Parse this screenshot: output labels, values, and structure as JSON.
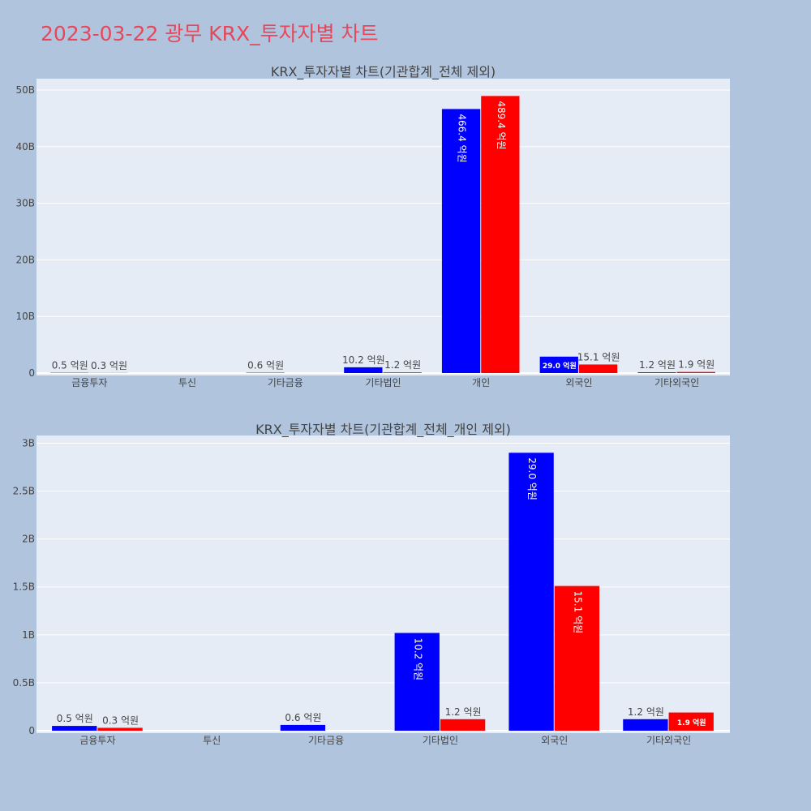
{
  "title": "2023-03-22 광무 KRX_투자자별 차트",
  "colors": {
    "series_a": "#0000ff",
    "series_b": "#ff0000",
    "title": "#e8465a",
    "plot_bg": "#e5ecf6",
    "page_bg": "#b0c4de"
  },
  "chart_data": [
    {
      "type": "bar",
      "title": "KRX_투자자별 차트(기관합계_전체 제외)",
      "categories": [
        "금융투자",
        "투신",
        "기타금융",
        "기타법인",
        "개인",
        "외국인",
        "기타외국인"
      ],
      "series": [
        {
          "values": [
            50000000,
            0,
            60000000,
            1020000000,
            46640000000,
            2900000000,
            120000000
          ],
          "labels": [
            "0.5 억원",
            "",
            "0.6 억원",
            "10.2 억원",
            "466.4 억원",
            "29.0 억원",
            "1.2 억원"
          ]
        },
        {
          "values": [
            30000000,
            0,
            0,
            120000000,
            48940000000,
            1510000000,
            190000000
          ],
          "labels": [
            "0.3 억원",
            "",
            "",
            "1.2 억원",
            "489.4 억원",
            "15.1 억원",
            "1.9 억원"
          ]
        }
      ],
      "ylim": [
        0,
        52000000000
      ],
      "yticks": [
        0,
        10000000000,
        20000000000,
        30000000000,
        40000000000,
        50000000000
      ],
      "ytick_labels": [
        "0",
        "10B",
        "20B",
        "30B",
        "40B",
        "50B"
      ]
    },
    {
      "type": "bar",
      "title": "KRX_투자자별 차트(기관합계_전체_개인 제외)",
      "categories": [
        "금융투자",
        "투신",
        "기타금융",
        "기타법인",
        "외국인",
        "기타외국인"
      ],
      "series": [
        {
          "values": [
            50000000,
            0,
            60000000,
            1020000000,
            2900000000,
            120000000
          ],
          "labels": [
            "0.5 억원",
            "",
            "0.6 억원",
            "10.2 억원",
            "29.0 억원",
            "1.2 억원"
          ]
        },
        {
          "values": [
            30000000,
            0,
            0,
            120000000,
            1510000000,
            190000000
          ],
          "labels": [
            "0.3 억원",
            "",
            "",
            "1.2 억원",
            "15.1 억원",
            "1.9 억원"
          ]
        }
      ],
      "ylim": [
        0,
        3080000000
      ],
      "yticks": [
        0,
        500000000,
        1000000000,
        1500000000,
        2000000000,
        2500000000,
        3000000000
      ],
      "ytick_labels": [
        "0",
        "0.5B",
        "1B",
        "1.5B",
        "2B",
        "2.5B",
        "3B"
      ]
    }
  ]
}
